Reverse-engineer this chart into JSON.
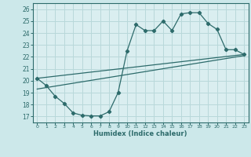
{
  "xlabel": "Humidex (Indice chaleur)",
  "xlim": [
    -0.5,
    23.5
  ],
  "ylim": [
    16.5,
    26.5
  ],
  "xticks": [
    0,
    1,
    2,
    3,
    4,
    5,
    6,
    7,
    8,
    9,
    10,
    11,
    12,
    13,
    14,
    15,
    16,
    17,
    18,
    19,
    20,
    21,
    22,
    23
  ],
  "yticks": [
    17,
    18,
    19,
    20,
    21,
    22,
    23,
    24,
    25,
    26
  ],
  "bg_color": "#cce8ea",
  "line_color": "#2d6b6b",
  "grid_color": "#b8d8da",
  "plot_bg": "#daeef0",
  "line1_x": [
    0,
    1,
    2,
    3,
    4,
    5,
    6,
    7,
    8,
    9,
    10,
    11,
    12,
    13,
    14,
    15,
    16,
    17,
    18,
    19,
    20,
    21,
    22,
    23
  ],
  "line1_y": [
    20.2,
    19.6,
    18.7,
    18.1,
    17.3,
    17.1,
    17.05,
    17.05,
    17.4,
    19.0,
    22.5,
    24.7,
    24.2,
    24.2,
    25.0,
    24.2,
    25.6,
    25.7,
    25.7,
    24.8,
    24.3,
    22.6,
    22.6,
    22.2
  ],
  "line2_x": [
    0,
    23
  ],
  "line2_y": [
    20.2,
    22.2
  ],
  "line3_x": [
    0,
    23
  ],
  "line3_y": [
    19.3,
    22.1
  ],
  "figsize": [
    3.2,
    2.0
  ],
  "dpi": 100
}
